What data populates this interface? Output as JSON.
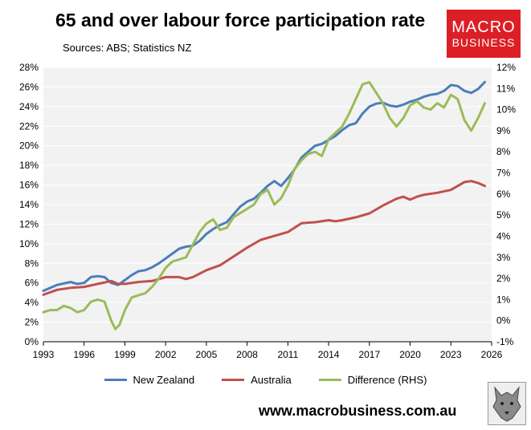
{
  "header": {
    "title": "65 and over labour force participation rate",
    "subtitle": "Sources: ABS; Statistics NZ"
  },
  "logo": {
    "line1": "MACRO",
    "line2": "BUSINESS",
    "color": "#dc1f26"
  },
  "footer": {
    "url": "www.macrobusiness.com.au",
    "mascot_icon": "wolf-icon"
  },
  "chart_data": {
    "type": "line",
    "title": "65 and over labour force participation rate",
    "subtitle": "Sources: ABS; Statistics NZ",
    "grid": true,
    "legend_position": "bottom",
    "x_ticks": [
      "1993",
      "1996",
      "1999",
      "2002",
      "2005",
      "2008",
      "2011",
      "2014",
      "2017",
      "2020",
      "2023",
      "2026"
    ],
    "xlim": [
      1993,
      2026
    ],
    "y_left": {
      "ylim": [
        0,
        28
      ],
      "ticks": [
        "0%",
        "2%",
        "4%",
        "6%",
        "8%",
        "10%",
        "12%",
        "14%",
        "16%",
        "18%",
        "20%",
        "22%",
        "24%",
        "26%",
        "28%"
      ]
    },
    "y_right": {
      "ylim": [
        -1,
        12
      ],
      "ticks": [
        "-1%",
        "0%",
        "1%",
        "2%",
        "3%",
        "4%",
        "5%",
        "6%",
        "7%",
        "8%",
        "9%",
        "10%",
        "11%",
        "12%"
      ]
    },
    "series": [
      {
        "name": "New Zealand",
        "axis": "left",
        "color": "#4a7ebb",
        "points": [
          [
            1993.0,
            5.2
          ],
          [
            1994.0,
            5.8
          ],
          [
            1995.0,
            6.1
          ],
          [
            1995.5,
            5.9
          ],
          [
            1996.0,
            6.0
          ],
          [
            1996.5,
            6.6
          ],
          [
            1997.0,
            6.7
          ],
          [
            1997.5,
            6.6
          ],
          [
            1998.0,
            6.0
          ],
          [
            1998.5,
            5.8
          ],
          [
            1999.0,
            6.3
          ],
          [
            1999.5,
            6.8
          ],
          [
            2000.0,
            7.2
          ],
          [
            2000.5,
            7.3
          ],
          [
            2001.0,
            7.6
          ],
          [
            2001.5,
            8.0
          ],
          [
            2002.0,
            8.5
          ],
          [
            2002.5,
            9.0
          ],
          [
            2003.0,
            9.5
          ],
          [
            2003.5,
            9.7
          ],
          [
            2004.0,
            9.8
          ],
          [
            2004.5,
            10.3
          ],
          [
            2005.0,
            11.0
          ],
          [
            2005.5,
            11.5
          ],
          [
            2006.0,
            11.9
          ],
          [
            2006.5,
            12.2
          ],
          [
            2007.0,
            13.0
          ],
          [
            2007.5,
            13.8
          ],
          [
            2008.0,
            14.3
          ],
          [
            2008.5,
            14.6
          ],
          [
            2009.0,
            15.2
          ],
          [
            2009.5,
            15.9
          ],
          [
            2010.0,
            16.4
          ],
          [
            2010.5,
            15.9
          ],
          [
            2011.0,
            16.7
          ],
          [
            2011.5,
            17.6
          ],
          [
            2012.0,
            18.8
          ],
          [
            2012.5,
            19.4
          ],
          [
            2013.0,
            20.0
          ],
          [
            2013.5,
            20.2
          ],
          [
            2014.0,
            20.6
          ],
          [
            2014.5,
            21.0
          ],
          [
            2015.0,
            21.6
          ],
          [
            2015.5,
            22.1
          ],
          [
            2016.0,
            22.3
          ],
          [
            2016.5,
            23.3
          ],
          [
            2017.0,
            24.0
          ],
          [
            2017.5,
            24.3
          ],
          [
            2018.0,
            24.4
          ],
          [
            2018.5,
            24.1
          ],
          [
            2019.0,
            24.0
          ],
          [
            2019.5,
            24.2
          ],
          [
            2020.0,
            24.5
          ],
          [
            2020.5,
            24.7
          ],
          [
            2021.0,
            25.0
          ],
          [
            2021.5,
            25.2
          ],
          [
            2022.0,
            25.3
          ],
          [
            2022.5,
            25.6
          ],
          [
            2023.0,
            26.2
          ],
          [
            2023.5,
            26.1
          ],
          [
            2024.0,
            25.6
          ],
          [
            2024.5,
            25.4
          ],
          [
            2025.0,
            25.8
          ],
          [
            2025.5,
            26.5
          ]
        ]
      },
      {
        "name": "Australia",
        "axis": "left",
        "color": "#c0504d",
        "points": [
          [
            1993.0,
            4.8
          ],
          [
            1994.0,
            5.3
          ],
          [
            1995.0,
            5.5
          ],
          [
            1996.0,
            5.6
          ],
          [
            1997.0,
            5.9
          ],
          [
            1998.0,
            6.2
          ],
          [
            1998.5,
            5.9
          ],
          [
            1999.0,
            5.9
          ],
          [
            2000.0,
            6.1
          ],
          [
            2001.0,
            6.2
          ],
          [
            2002.0,
            6.6
          ],
          [
            2003.0,
            6.6
          ],
          [
            2003.5,
            6.4
          ],
          [
            2004.0,
            6.6
          ],
          [
            2005.0,
            7.3
          ],
          [
            2006.0,
            7.8
          ],
          [
            2007.0,
            8.7
          ],
          [
            2008.0,
            9.6
          ],
          [
            2009.0,
            10.4
          ],
          [
            2010.0,
            10.8
          ],
          [
            2011.0,
            11.2
          ],
          [
            2012.0,
            12.1
          ],
          [
            2013.0,
            12.2
          ],
          [
            2014.0,
            12.4
          ],
          [
            2014.5,
            12.3
          ],
          [
            2015.0,
            12.4
          ],
          [
            2016.0,
            12.7
          ],
          [
            2017.0,
            13.1
          ],
          [
            2018.0,
            13.9
          ],
          [
            2019.0,
            14.6
          ],
          [
            2019.5,
            14.8
          ],
          [
            2020.0,
            14.5
          ],
          [
            2020.5,
            14.8
          ],
          [
            2021.0,
            15.0
          ],
          [
            2022.0,
            15.2
          ],
          [
            2023.0,
            15.5
          ],
          [
            2023.5,
            15.9
          ],
          [
            2024.0,
            16.3
          ],
          [
            2024.5,
            16.4
          ],
          [
            2025.0,
            16.2
          ],
          [
            2025.5,
            15.9
          ]
        ]
      },
      {
        "name": "Difference (RHS)",
        "axis": "right",
        "color": "#9bbb59",
        "points": [
          [
            1993.0,
            0.4
          ],
          [
            1993.5,
            0.5
          ],
          [
            1994.0,
            0.5
          ],
          [
            1994.5,
            0.7
          ],
          [
            1995.0,
            0.6
          ],
          [
            1995.5,
            0.4
          ],
          [
            1996.0,
            0.5
          ],
          [
            1996.5,
            0.9
          ],
          [
            1997.0,
            1.0
          ],
          [
            1997.5,
            0.9
          ],
          [
            1998.0,
            0.0
          ],
          [
            1998.3,
            -0.4
          ],
          [
            1998.6,
            -0.2
          ],
          [
            1999.0,
            0.5
          ],
          [
            1999.5,
            1.1
          ],
          [
            2000.0,
            1.2
          ],
          [
            2000.5,
            1.3
          ],
          [
            2001.0,
            1.6
          ],
          [
            2001.5,
            2.0
          ],
          [
            2002.0,
            2.5
          ],
          [
            2002.5,
            2.8
          ],
          [
            2003.0,
            2.9
          ],
          [
            2003.5,
            3.0
          ],
          [
            2004.0,
            3.6
          ],
          [
            2004.5,
            4.2
          ],
          [
            2005.0,
            4.6
          ],
          [
            2005.5,
            4.8
          ],
          [
            2006.0,
            4.3
          ],
          [
            2006.5,
            4.4
          ],
          [
            2007.0,
            4.9
          ],
          [
            2007.5,
            5.1
          ],
          [
            2008.0,
            5.3
          ],
          [
            2008.5,
            5.5
          ],
          [
            2009.0,
            6.0
          ],
          [
            2009.5,
            6.2
          ],
          [
            2010.0,
            5.5
          ],
          [
            2010.5,
            5.8
          ],
          [
            2011.0,
            6.4
          ],
          [
            2011.5,
            7.2
          ],
          [
            2012.0,
            7.6
          ],
          [
            2012.5,
            7.9
          ],
          [
            2013.0,
            8.0
          ],
          [
            2013.5,
            7.8
          ],
          [
            2014.0,
            8.6
          ],
          [
            2014.5,
            8.9
          ],
          [
            2015.0,
            9.2
          ],
          [
            2015.5,
            9.8
          ],
          [
            2016.0,
            10.5
          ],
          [
            2016.5,
            11.2
          ],
          [
            2017.0,
            11.3
          ],
          [
            2017.5,
            10.8
          ],
          [
            2018.0,
            10.3
          ],
          [
            2018.5,
            9.6
          ],
          [
            2019.0,
            9.2
          ],
          [
            2019.5,
            9.6
          ],
          [
            2020.0,
            10.2
          ],
          [
            2020.5,
            10.4
          ],
          [
            2021.0,
            10.1
          ],
          [
            2021.5,
            10.0
          ],
          [
            2022.0,
            10.3
          ],
          [
            2022.5,
            10.1
          ],
          [
            2023.0,
            10.7
          ],
          [
            2023.5,
            10.5
          ],
          [
            2024.0,
            9.5
          ],
          [
            2024.5,
            9.0
          ],
          [
            2025.0,
            9.6
          ],
          [
            2025.5,
            10.3
          ]
        ]
      }
    ]
  }
}
